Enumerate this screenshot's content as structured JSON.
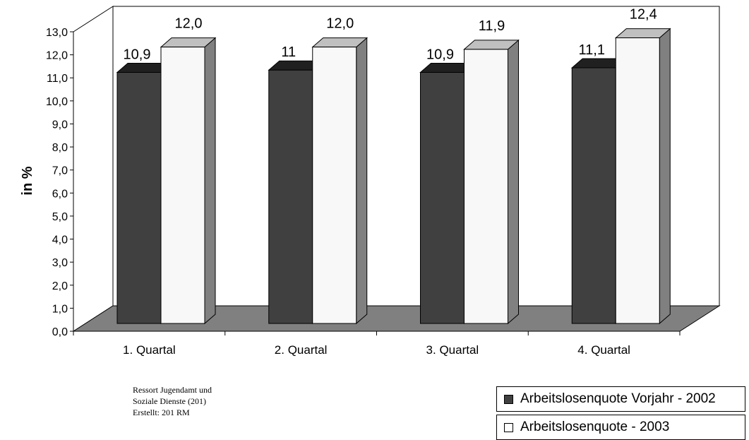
{
  "chart_data": {
    "type": "bar",
    "categories": [
      "1. Quartal",
      "2. Quartal",
      "3. Quartal",
      "4. Quartal"
    ],
    "series": [
      {
        "name": "Arbeitslosenquote Vorjahr - 2002",
        "values": [
          10.9,
          11.0,
          10.9,
          11.1
        ],
        "labels": [
          "10,9",
          "11",
          "10,9",
          "11,1"
        ],
        "color": "#404040"
      },
      {
        "name": "Arbeitslosenquote - 2003",
        "values": [
          12.0,
          12.0,
          11.9,
          12.4
        ],
        "labels": [
          "12,0",
          "12,0",
          "11,9",
          "12,4"
        ],
        "color": "#f8f8f8"
      }
    ],
    "ylabel": "in %",
    "ylim": [
      0,
      13
    ],
    "yticks": [
      "0,0",
      "1,0",
      "2,0",
      "3,0",
      "4,0",
      "5,0",
      "6,0",
      "7,0",
      "8,0",
      "9,0",
      "10,0",
      "11,0",
      "12,0",
      "13,0"
    ],
    "floor_color": "#808080",
    "side_color": "#808080",
    "grid": false,
    "legend_position": "bottom-right"
  },
  "source": {
    "line1": "Ressort Jugendamt und",
    "line2": "Soziale Dienste (201)",
    "line3": "Erstellt: 201 RM"
  }
}
